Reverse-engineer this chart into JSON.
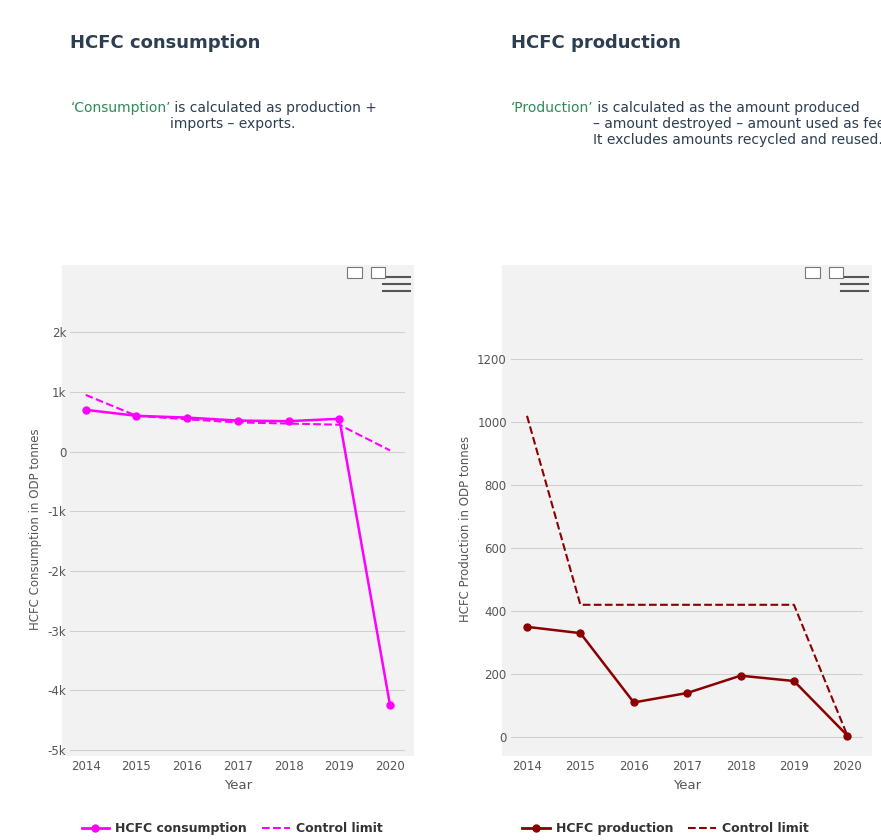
{
  "consumption": {
    "title": "HCFC consumption",
    "subtitle_cyan": "‘Consumption’",
    "subtitle_rest": " is calculated as production +\nimports – exports.",
    "years": [
      2014,
      2015,
      2016,
      2017,
      2018,
      2019,
      2020
    ],
    "values": [
      700,
      600,
      570,
      520,
      510,
      550,
      -4250
    ],
    "control_limit": [
      950,
      600,
      540,
      490,
      470,
      450,
      20
    ],
    "ylim": [
      -5100,
      2500
    ],
    "yticks": [
      -5000,
      -4000,
      -3000,
      -2000,
      -1000,
      0,
      1000,
      2000
    ],
    "ytick_labels": [
      "-5k",
      "-4k",
      "-3k",
      "-2k",
      "-1k",
      "0",
      "1k",
      "2k"
    ],
    "ylabel": "HCFC Consumption in ODP tonnes",
    "xlabel": "Year",
    "line_color": "#FF00FF",
    "control_color": "#FF00FF",
    "legend_line": "HCFC consumption",
    "legend_control": "Control limit",
    "bg_color": "#f2f2f2"
  },
  "production": {
    "title": "HCFC production",
    "subtitle_cyan": "‘Production’",
    "subtitle_rest": " is calculated as the amount produced\n– amount destroyed – amount used as feedstock.\nIt excludes amounts recycled and reused.",
    "years": [
      2014,
      2015,
      2016,
      2017,
      2018,
      2019,
      2020
    ],
    "values": [
      350,
      330,
      110,
      140,
      195,
      178,
      5
    ],
    "control_limit": [
      1020,
      420,
      420,
      420,
      420,
      420,
      5
    ],
    "ylim": [
      -60,
      1380
    ],
    "yticks": [
      0,
      200,
      400,
      600,
      800,
      1000,
      1200
    ],
    "ytick_labels": [
      "0",
      "200",
      "400",
      "600",
      "800",
      "1000",
      "1200"
    ],
    "ylabel": "HCFC Production in ODP tonnes",
    "xlabel": "Year",
    "line_color": "#8B0000",
    "control_color": "#8B0000",
    "legend_line": "HCFC production",
    "legend_control": "Control limit",
    "bg_color": "#f2f2f2"
  },
  "title_color": "#2c3e50",
  "cyan_color": "#2e8b57",
  "subtitle_color": "#2c3e50",
  "overall_bg": "#ffffff",
  "tick_color": "#555555",
  "grid_color": "#d0d0d0"
}
